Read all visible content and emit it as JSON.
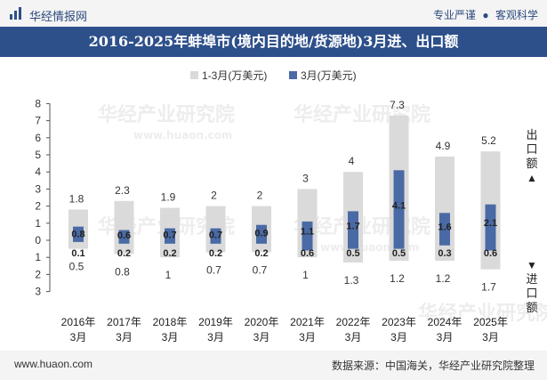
{
  "header": {
    "brand": "华经情报网",
    "tagline_left": "专业严谨",
    "tagline_right": "客观科学",
    "title": "2016-2025年蚌埠市(境内目的地/货源地)3月进、出口额"
  },
  "watermark": {
    "text_cn": "华经产业研究院",
    "text_en": "www.huaon.com"
  },
  "side_labels": {
    "export": "出口额",
    "import": "进口额",
    "up_arrow": "▲",
    "down_arrow": "▼"
  },
  "footer": {
    "left": "www.huaon.com",
    "right": "数据来源：中国海关，华经产业研究院整理"
  },
  "colors": {
    "cumulative": "#dadada",
    "month": "#4a6aa5",
    "title_bg": "#2d4f8a"
  },
  "chart_data": {
    "type": "bar",
    "legend": [
      "1-3月(万美元)",
      "3月(万美元)"
    ],
    "legend_position": "top-center",
    "categories": [
      [
        "2016年",
        "3月"
      ],
      [
        "2017年",
        "3月"
      ],
      [
        "2018年",
        "3月"
      ],
      [
        "2019年",
        "3月"
      ],
      [
        "2020年",
        "3月"
      ],
      [
        "2021年",
        "3月"
      ],
      [
        "2022年",
        "3月"
      ],
      [
        "2023年",
        "3月"
      ],
      [
        "2024年",
        "3月"
      ],
      [
        "2025年",
        "3月"
      ]
    ],
    "y_ticks": [
      {
        "value": 8,
        "label": "8"
      },
      {
        "value": 7,
        "label": "7"
      },
      {
        "value": 6,
        "label": "6"
      },
      {
        "value": 5,
        "label": "5"
      },
      {
        "value": 4,
        "label": "4"
      },
      {
        "value": 3,
        "label": "3"
      },
      {
        "value": 2,
        "label": "2"
      },
      {
        "value": 1,
        "label": "1"
      },
      {
        "value": 0,
        "label": "0"
      },
      {
        "value": -1,
        "label": "1"
      },
      {
        "value": -2,
        "label": "2"
      },
      {
        "value": -3,
        "label": "3"
      }
    ],
    "ylim": [
      -3,
      8
    ],
    "export_q1": [
      1.8,
      2.3,
      1.9,
      2,
      2,
      3,
      4,
      7.3,
      4.9,
      5.2
    ],
    "export_mar": [
      0.8,
      0.6,
      0.7,
      0.7,
      0.9,
      1.1,
      1.7,
      4.1,
      1.6,
      2.1
    ],
    "import_q1": [
      0.5,
      0.8,
      1,
      0.7,
      0.7,
      1,
      1.3,
      1.2,
      1.2,
      1.7
    ],
    "import_mar": [
      0.1,
      0.2,
      0.2,
      0.2,
      0.2,
      0.6,
      0.5,
      0.5,
      0.3,
      0.6
    ]
  }
}
